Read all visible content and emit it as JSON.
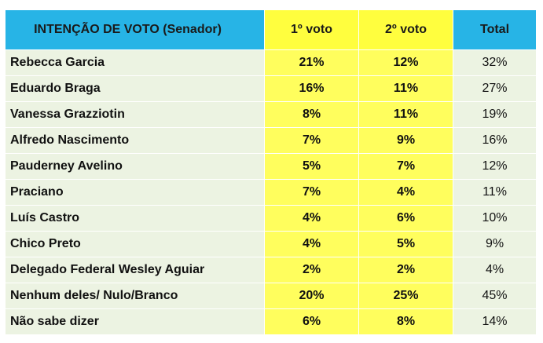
{
  "chart_data": {
    "type": "table",
    "columns": [
      "INTENÇÃO DE VOTO (Senador)",
      "1º voto",
      "2º voto",
      "Total"
    ],
    "rows": [
      {
        "name": "Rebecca Garcia",
        "v1": "21%",
        "v2": "12%",
        "total": "32%"
      },
      {
        "name": "Eduardo Braga",
        "v1": "16%",
        "v2": "11%",
        "total": "27%"
      },
      {
        "name": "Vanessa Grazziotin",
        "v1": "8%",
        "v2": "11%",
        "total": "19%"
      },
      {
        "name": "Alfredo Nascimento",
        "v1": "7%",
        "v2": "9%",
        "total": "16%"
      },
      {
        "name": "Pauderney Avelino",
        "v1": "5%",
        "v2": "7%",
        "total": "12%"
      },
      {
        "name": "Praciano",
        "v1": "7%",
        "v2": "4%",
        "total": "11%"
      },
      {
        "name": "Luís Castro",
        "v1": "4%",
        "v2": "6%",
        "total": "10%"
      },
      {
        "name": "Chico Preto",
        "v1": "4%",
        "v2": "5%",
        "total": "9%"
      },
      {
        "name": "Delegado Federal Wesley Aguiar",
        "v1": "2%",
        "v2": "2%",
        "total": "4%"
      },
      {
        "name": "Nenhum deles/ Nulo/Branco",
        "v1": "20%",
        "v2": "25%",
        "total": "45%"
      },
      {
        "name": "Não sabe dizer",
        "v1": "6%",
        "v2": "8%",
        "total": "14%"
      }
    ]
  },
  "colors": {
    "header_blue": "#27b4e6",
    "header_yellow": "#fffe3e",
    "cell_yellow": "#fffe5d",
    "cell_green": "#ecf3e2"
  }
}
